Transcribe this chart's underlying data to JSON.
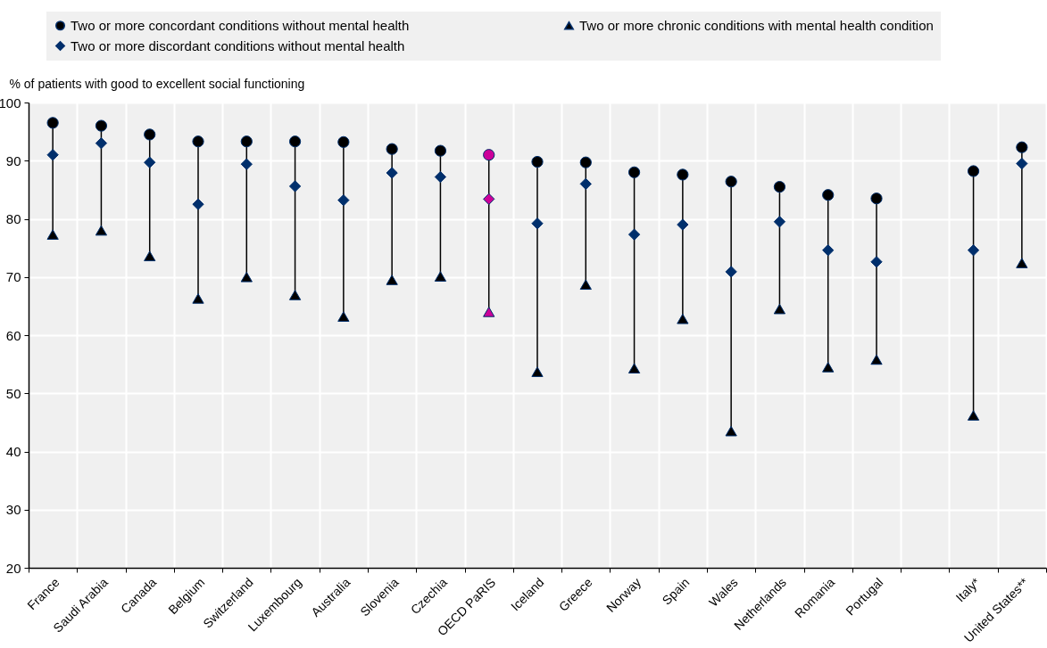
{
  "chart_data": {
    "type": "scatter",
    "ylabel": "% of patients with good to excellent social functioning",
    "categories": [
      "France",
      "Saudi Arabia",
      "Canada",
      "Belgium",
      "Switzerland",
      "Luxembourg",
      "Australia",
      "Slovenia",
      "Czechia",
      "OECD PaRIS",
      "Iceland",
      "Greece",
      "Norway",
      "Spain",
      "Wales",
      "Netherlands",
      "Romania",
      "Portugal",
      null,
      "Italy*",
      "United States**"
    ],
    "series": [
      {
        "name": "Two or more concordant conditions without mental health",
        "marker": "circle",
        "color": "#000000",
        "colors": [
          "#000000",
          "#000000",
          "#000000",
          "#000000",
          "#000000",
          "#000000",
          "#000000",
          "#000000",
          "#000000",
          "#cc0099",
          "#000000",
          "#000000",
          "#000000",
          "#000000",
          "#000000",
          "#000000",
          "#000000",
          "#000000",
          null,
          "#000000",
          "#000000"
        ],
        "values": [
          96.5,
          96.0,
          94.5,
          93.3,
          93.3,
          93.3,
          93.2,
          92.0,
          91.7,
          91.0,
          89.8,
          89.7,
          88.0,
          87.6,
          86.4,
          85.5,
          84.1,
          83.5,
          null,
          88.2,
          92.3
        ]
      },
      {
        "name": "Two or more discordant conditions without mental health",
        "marker": "diamond",
        "color": "#002f6c",
        "colors": [
          "#002f6c",
          "#002f6c",
          "#002f6c",
          "#002f6c",
          "#002f6c",
          "#002f6c",
          "#002f6c",
          "#002f6c",
          "#002f6c",
          "#cc0099",
          "#002f6c",
          "#002f6c",
          "#002f6c",
          "#002f6c",
          "#002f6c",
          "#002f6c",
          "#002f6c",
          "#002f6c",
          null,
          "#002f6c",
          "#002f6c"
        ],
        "values": [
          91.0,
          93.0,
          89.7,
          82.5,
          89.4,
          85.6,
          83.2,
          87.9,
          87.2,
          83.4,
          79.2,
          86.0,
          77.3,
          79.0,
          70.9,
          79.5,
          74.6,
          72.6,
          null,
          74.6,
          89.5
        ]
      },
      {
        "name": "Two or more chronic conditions with mental health condition",
        "marker": "triangle",
        "color": "#000000",
        "colors": [
          "#000000",
          "#000000",
          "#000000",
          "#000000",
          "#000000",
          "#000000",
          "#000000",
          "#000000",
          "#000000",
          "#cc0099",
          "#000000",
          "#000000",
          "#000000",
          "#000000",
          "#000000",
          "#000000",
          "#000000",
          "#000000",
          null,
          "#000000",
          "#000000"
        ],
        "values": [
          77.3,
          78.0,
          73.6,
          66.3,
          70.0,
          66.9,
          63.2,
          69.5,
          70.1,
          64.0,
          53.7,
          68.7,
          54.3,
          62.8,
          43.5,
          64.5,
          54.5,
          55.8,
          null,
          46.2,
          72.4
        ]
      }
    ],
    "ylim": [
      20,
      100
    ],
    "yticks": [
      20,
      30,
      40,
      50,
      60,
      70,
      80,
      90,
      100
    ],
    "grid": true,
    "legend": "top"
  }
}
